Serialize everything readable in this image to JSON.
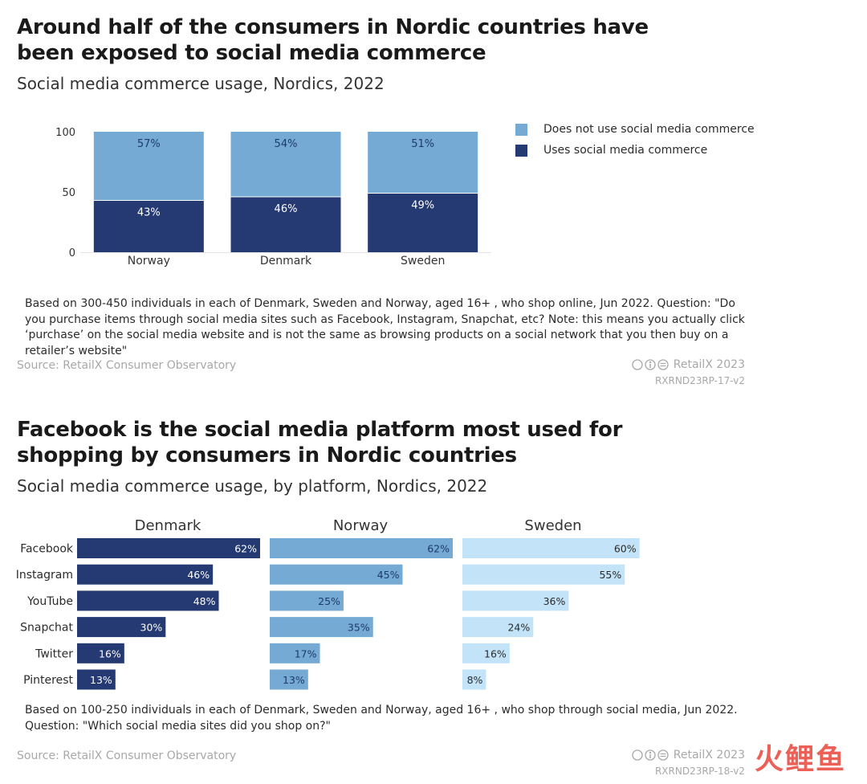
{
  "chart1": {
    "title": "Around half of the consumers in Nordic countries have been exposed to social media commerce",
    "subtitle": "Social media commerce usage, Nordics, 2022",
    "legend": [
      "Does not use social media commerce",
      "Uses social media commerce"
    ],
    "note": "Based on 300-450 individuals in each of Denmark, Sweden and Norway, aged 16+ , who shop online, Jun 2022. Question: \"Do you purchase items through social media sites such as Facebook, Instagram, Snapchat, etc? Note: this means you actually click ‘purchase’ on the social media website and is not the same as browsing products on a social network that you then buy on a retailer’s website\"",
    "source": "Source: RetailX Consumer Observatory",
    "brand": "RetailX 2023",
    "code": "RXRND23RP-17-v2"
  },
  "chart2": {
    "title": "Facebook is the social media platform most used for shopping by consumers in Nordic countries",
    "subtitle": "Social media commerce usage, by platform, Nordics, 2022",
    "note": "Based on 100-250 individuals in each of Denmark, Sweden and Norway, aged 16+ , who shop through social media, Jun 2022. Question: \"Which social media sites did you shop on?\"",
    "source": "Source: RetailX Consumer Observatory",
    "brand": "RetailX 2023",
    "code": "RXRND23RP-18-v2"
  },
  "watermark": "火鲤鱼",
  "colors": {
    "dark": "#253a73",
    "light": "#74aad3",
    "norway": "#74aad3",
    "sweden": "#c2e3f8"
  },
  "chart_data": [
    {
      "type": "bar",
      "stacked": true,
      "categories": [
        "Norway",
        "Denmark",
        "Sweden"
      ],
      "series": [
        {
          "name": "Uses social media commerce",
          "values": [
            43,
            46,
            49
          ],
          "labels": [
            "43%",
            "46%",
            "49%"
          ]
        },
        {
          "name": "Does not use social media commerce",
          "values": [
            57,
            54,
            51
          ],
          "labels": [
            "57%",
            "54%",
            "51%"
          ]
        }
      ],
      "yticks": [
        "0",
        "50",
        "100"
      ],
      "ylim": [
        0,
        100
      ],
      "legend_position": "right"
    },
    {
      "type": "bar",
      "orientation": "horizontal",
      "categories": [
        "Facebook",
        "Instagram",
        "YouTube",
        "Snapchat",
        "Twitter",
        "Pinterest"
      ],
      "panels": [
        {
          "name": "Denmark",
          "values": [
            62,
            46,
            48,
            30,
            16,
            13
          ],
          "labels": [
            "62%",
            "46%",
            "48%",
            "30%",
            "16%",
            "13%"
          ]
        },
        {
          "name": "Norway",
          "values": [
            62,
            45,
            25,
            35,
            17,
            13
          ],
          "labels": [
            "62%",
            "45%",
            "25%",
            "35%",
            "17%",
            "13%"
          ]
        },
        {
          "name": "Sweden",
          "values": [
            60,
            55,
            36,
            24,
            16,
            8
          ],
          "labels": [
            "60%",
            "55%",
            "36%",
            "24%",
            "16%",
            "8%"
          ]
        }
      ],
      "xlim": [
        0,
        62
      ]
    }
  ]
}
